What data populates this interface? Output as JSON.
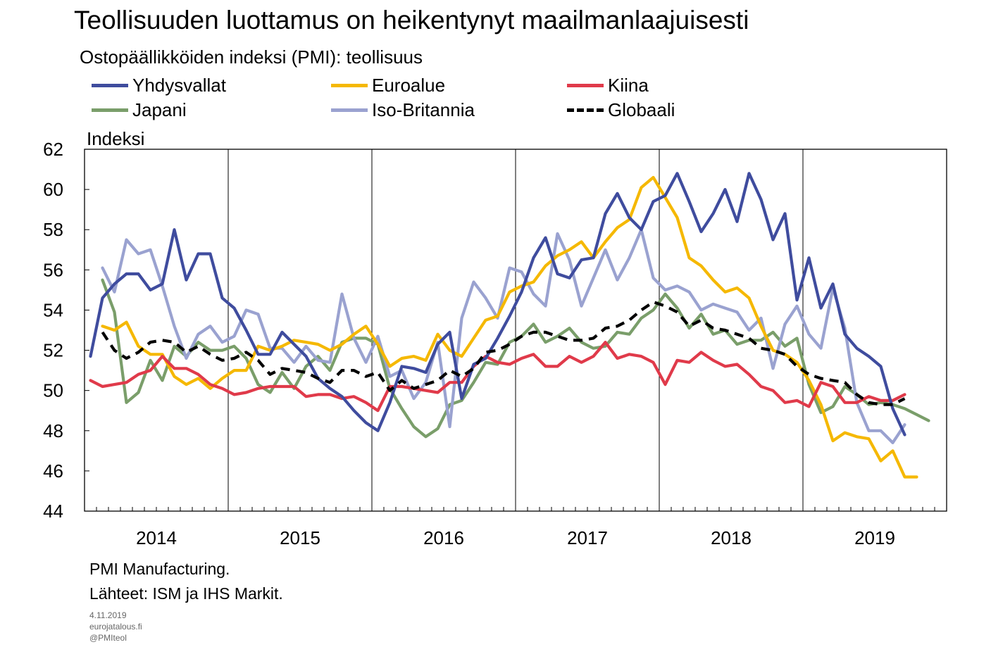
{
  "title": "Teollisuuden luottamus on heikentynyt maailmanlaajuisesti",
  "subtitle": "Ostopäällikköiden indeksi (PMI): teollisuus",
  "footer": {
    "note": "PMI Manufacturing.",
    "sources": "Lähteet: ISM ja IHS Markit.",
    "date": "4.11.2019",
    "site": "eurojatalous.fi",
    "handle": "@PMIteol"
  },
  "chart_data": {
    "type": "line",
    "ylabel": "Indeksi",
    "ylim": [
      44,
      62
    ],
    "yticks": [
      44,
      46,
      48,
      50,
      52,
      54,
      56,
      58,
      60,
      62
    ],
    "x_year_labels": [
      "2014",
      "2015",
      "2016",
      "2017",
      "2018",
      "2019"
    ],
    "x_start": "2014-01",
    "x_months": 72,
    "grid": "vertical lines at year boundaries",
    "legend_position": "top",
    "series": [
      {
        "name": "Yhdysvallat",
        "color": "#3f4c9e",
        "dash": "solid",
        "values": [
          51.7,
          54.6,
          55.3,
          55.8,
          55.8,
          55.0,
          55.3,
          58.0,
          55.5,
          56.8,
          56.8,
          54.6,
          54.1,
          53.0,
          51.8,
          51.8,
          52.9,
          52.3,
          51.7,
          50.6,
          50.1,
          49.7,
          49.0,
          48.4,
          48.0,
          49.4,
          51.2,
          51.1,
          50.9,
          52.3,
          52.9,
          49.6,
          51.3,
          51.6,
          52.6,
          53.7,
          54.9,
          56.6,
          57.6,
          55.8,
          55.6,
          56.5,
          56.6,
          58.8,
          59.8,
          58.6,
          58.0,
          59.4,
          59.7,
          60.8,
          59.4,
          57.9,
          58.8,
          60.0,
          58.4,
          60.8,
          59.5,
          57.5,
          58.8,
          54.5,
          56.6,
          54.1,
          55.3,
          52.8,
          52.1,
          51.7,
          51.2,
          49.1,
          47.8,
          null,
          null,
          null
        ]
      },
      {
        "name": "Euroalue",
        "color": "#f5b800",
        "dash": "solid",
        "values": [
          null,
          53.2,
          53.0,
          53.4,
          52.2,
          51.8,
          51.8,
          50.7,
          50.3,
          50.6,
          50.1,
          50.6,
          51.0,
          51.0,
          52.2,
          52.0,
          52.2,
          52.5,
          52.4,
          52.3,
          52.0,
          52.3,
          52.8,
          53.2,
          52.3,
          51.2,
          51.6,
          51.7,
          51.5,
          52.8,
          52.0,
          51.7,
          52.6,
          53.5,
          53.7,
          54.9,
          55.2,
          55.4,
          56.2,
          56.7,
          57.0,
          57.4,
          56.6,
          57.4,
          58.1,
          58.5,
          60.1,
          60.6,
          59.6,
          58.6,
          56.6,
          56.2,
          55.5,
          54.9,
          55.1,
          54.6,
          53.2,
          52.0,
          51.8,
          51.4,
          50.5,
          49.3,
          47.5,
          47.9,
          47.7,
          47.6,
          46.5,
          47.0,
          45.7,
          45.7,
          null,
          null
        ]
      },
      {
        "name": "Kiina",
        "color": "#e03a4a",
        "dash": "solid",
        "values": [
          50.5,
          50.2,
          50.3,
          50.4,
          50.8,
          51.0,
          51.7,
          51.1,
          51.1,
          50.8,
          50.3,
          50.1,
          49.8,
          49.9,
          50.1,
          50.2,
          50.2,
          50.2,
          49.7,
          49.8,
          49.8,
          49.6,
          49.7,
          49.4,
          49.0,
          50.2,
          50.2,
          50.1,
          50.0,
          49.9,
          50.4,
          50.4,
          51.2,
          51.7,
          51.4,
          51.3,
          51.6,
          51.8,
          51.2,
          51.2,
          51.7,
          51.4,
          51.7,
          52.4,
          51.6,
          51.8,
          51.7,
          51.4,
          50.3,
          51.5,
          51.4,
          51.9,
          51.5,
          51.2,
          51.3,
          50.8,
          50.2,
          50.0,
          49.4,
          49.5,
          49.2,
          50.4,
          50.2,
          49.4,
          49.4,
          49.7,
          49.5,
          49.5,
          49.8,
          null,
          null,
          null
        ]
      },
      {
        "name": "Japani",
        "color": "#7a9e6a",
        "dash": "solid",
        "values": [
          null,
          55.5,
          53.9,
          49.4,
          49.9,
          51.5,
          50.5,
          52.2,
          51.7,
          52.4,
          52.0,
          52.0,
          52.2,
          51.6,
          50.3,
          49.9,
          50.9,
          50.1,
          51.2,
          51.7,
          51.0,
          52.4,
          52.6,
          52.6,
          52.3,
          50.1,
          49.1,
          48.2,
          47.7,
          48.1,
          49.3,
          49.5,
          50.4,
          51.4,
          51.3,
          52.4,
          52.7,
          53.3,
          52.4,
          52.7,
          53.1,
          52.4,
          52.1,
          52.2,
          52.9,
          52.8,
          53.6,
          54.0,
          54.8,
          54.1,
          53.1,
          53.8,
          52.8,
          53.0,
          52.3,
          52.5,
          52.5,
          52.9,
          52.2,
          52.6,
          50.3,
          48.9,
          49.2,
          50.2,
          49.8,
          49.3,
          49.4,
          49.3,
          49.1,
          48.8,
          48.5,
          null
        ]
      },
      {
        "name": "Iso-Britannia",
        "color": "#9aa2d0",
        "dash": "solid",
        "values": [
          null,
          56.1,
          54.9,
          57.5,
          56.8,
          57.0,
          55.2,
          53.2,
          51.6,
          52.8,
          53.2,
          52.4,
          52.7,
          54.0,
          53.8,
          52.1,
          52.1,
          51.4,
          52.2,
          51.5,
          51.4,
          54.8,
          52.6,
          51.4,
          52.7,
          50.7,
          51.0,
          49.6,
          50.4,
          52.4,
          48.2,
          53.6,
          55.4,
          54.6,
          53.6,
          56.1,
          55.9,
          54.8,
          54.2,
          57.8,
          56.5,
          54.2,
          55.6,
          57.0,
          55.5,
          56.6,
          58.0,
          55.6,
          55.0,
          55.2,
          54.9,
          54.0,
          54.3,
          54.1,
          53.9,
          53.0,
          53.6,
          51.1,
          53.3,
          54.2,
          52.8,
          52.1,
          55.1,
          53.1,
          49.4,
          48.0,
          48.0,
          47.4,
          48.3,
          null,
          null,
          null
        ]
      },
      {
        "name": "Globaali",
        "color": "#000000",
        "dash": "dashed",
        "values": [
          null,
          52.9,
          52.0,
          51.6,
          51.9,
          52.4,
          52.5,
          52.4,
          51.9,
          52.2,
          51.8,
          51.5,
          51.6,
          51.9,
          51.5,
          50.8,
          51.1,
          51.0,
          50.9,
          50.6,
          50.4,
          51.0,
          51.0,
          50.7,
          50.9,
          50.0,
          50.5,
          50.1,
          50.3,
          50.5,
          51.0,
          50.7,
          51.1,
          51.9,
          52.0,
          52.3,
          52.7,
          52.9,
          52.9,
          52.7,
          52.5,
          52.5,
          52.6,
          53.1,
          53.2,
          53.5,
          54.0,
          54.4,
          54.2,
          53.9,
          53.2,
          53.5,
          53.1,
          53.0,
          52.8,
          52.6,
          52.1,
          52.0,
          51.8,
          51.2,
          50.8,
          50.6,
          50.5,
          50.4,
          49.8,
          49.4,
          49.3,
          49.3,
          49.6,
          null,
          null,
          null
        ]
      }
    ]
  }
}
